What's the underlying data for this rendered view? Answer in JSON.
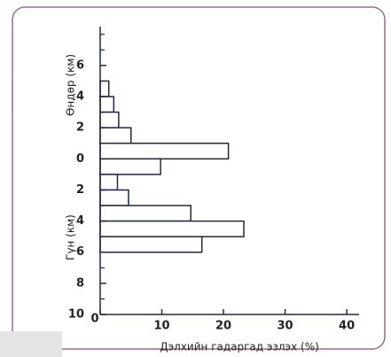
{
  "chart_data": {
    "type": "histogram",
    "orientation": "horizontal",
    "x_label": "Дэлхийн гадаргад эзлэх (%)",
    "y_label_top": "Өндөр (км)",
    "y_label_bottom": "Гүн (км)",
    "bins": [
      5,
      4,
      3,
      2,
      1,
      0,
      -1,
      -2,
      -3,
      -4,
      -5,
      -6
    ],
    "values": [
      1.4,
      2.2,
      3,
      5,
      20.8,
      9.8,
      2.8,
      4.6,
      14.7,
      23.3,
      16.5
    ],
    "color": "#ffffff",
    "edge_color": "#1f2a44",
    "xlim": [
      0,
      42
    ],
    "xticks": [
      0,
      10,
      20,
      30,
      40
    ],
    "ylim": [
      -10,
      8.5
    ],
    "yticks": [
      6,
      4,
      2,
      0,
      {
        "value": -2,
        "label": "2"
      },
      {
        "value": -4,
        "label": "4"
      },
      {
        "value": -6,
        "label": "6"
      },
      {
        "value": -8,
        "label": "8"
      },
      {
        "value": -10,
        "label": "10"
      }
    ],
    "minor_yticks": [
      8,
      7,
      5,
      3,
      1,
      -1,
      -3,
      -5,
      -7,
      -9
    ]
  }
}
